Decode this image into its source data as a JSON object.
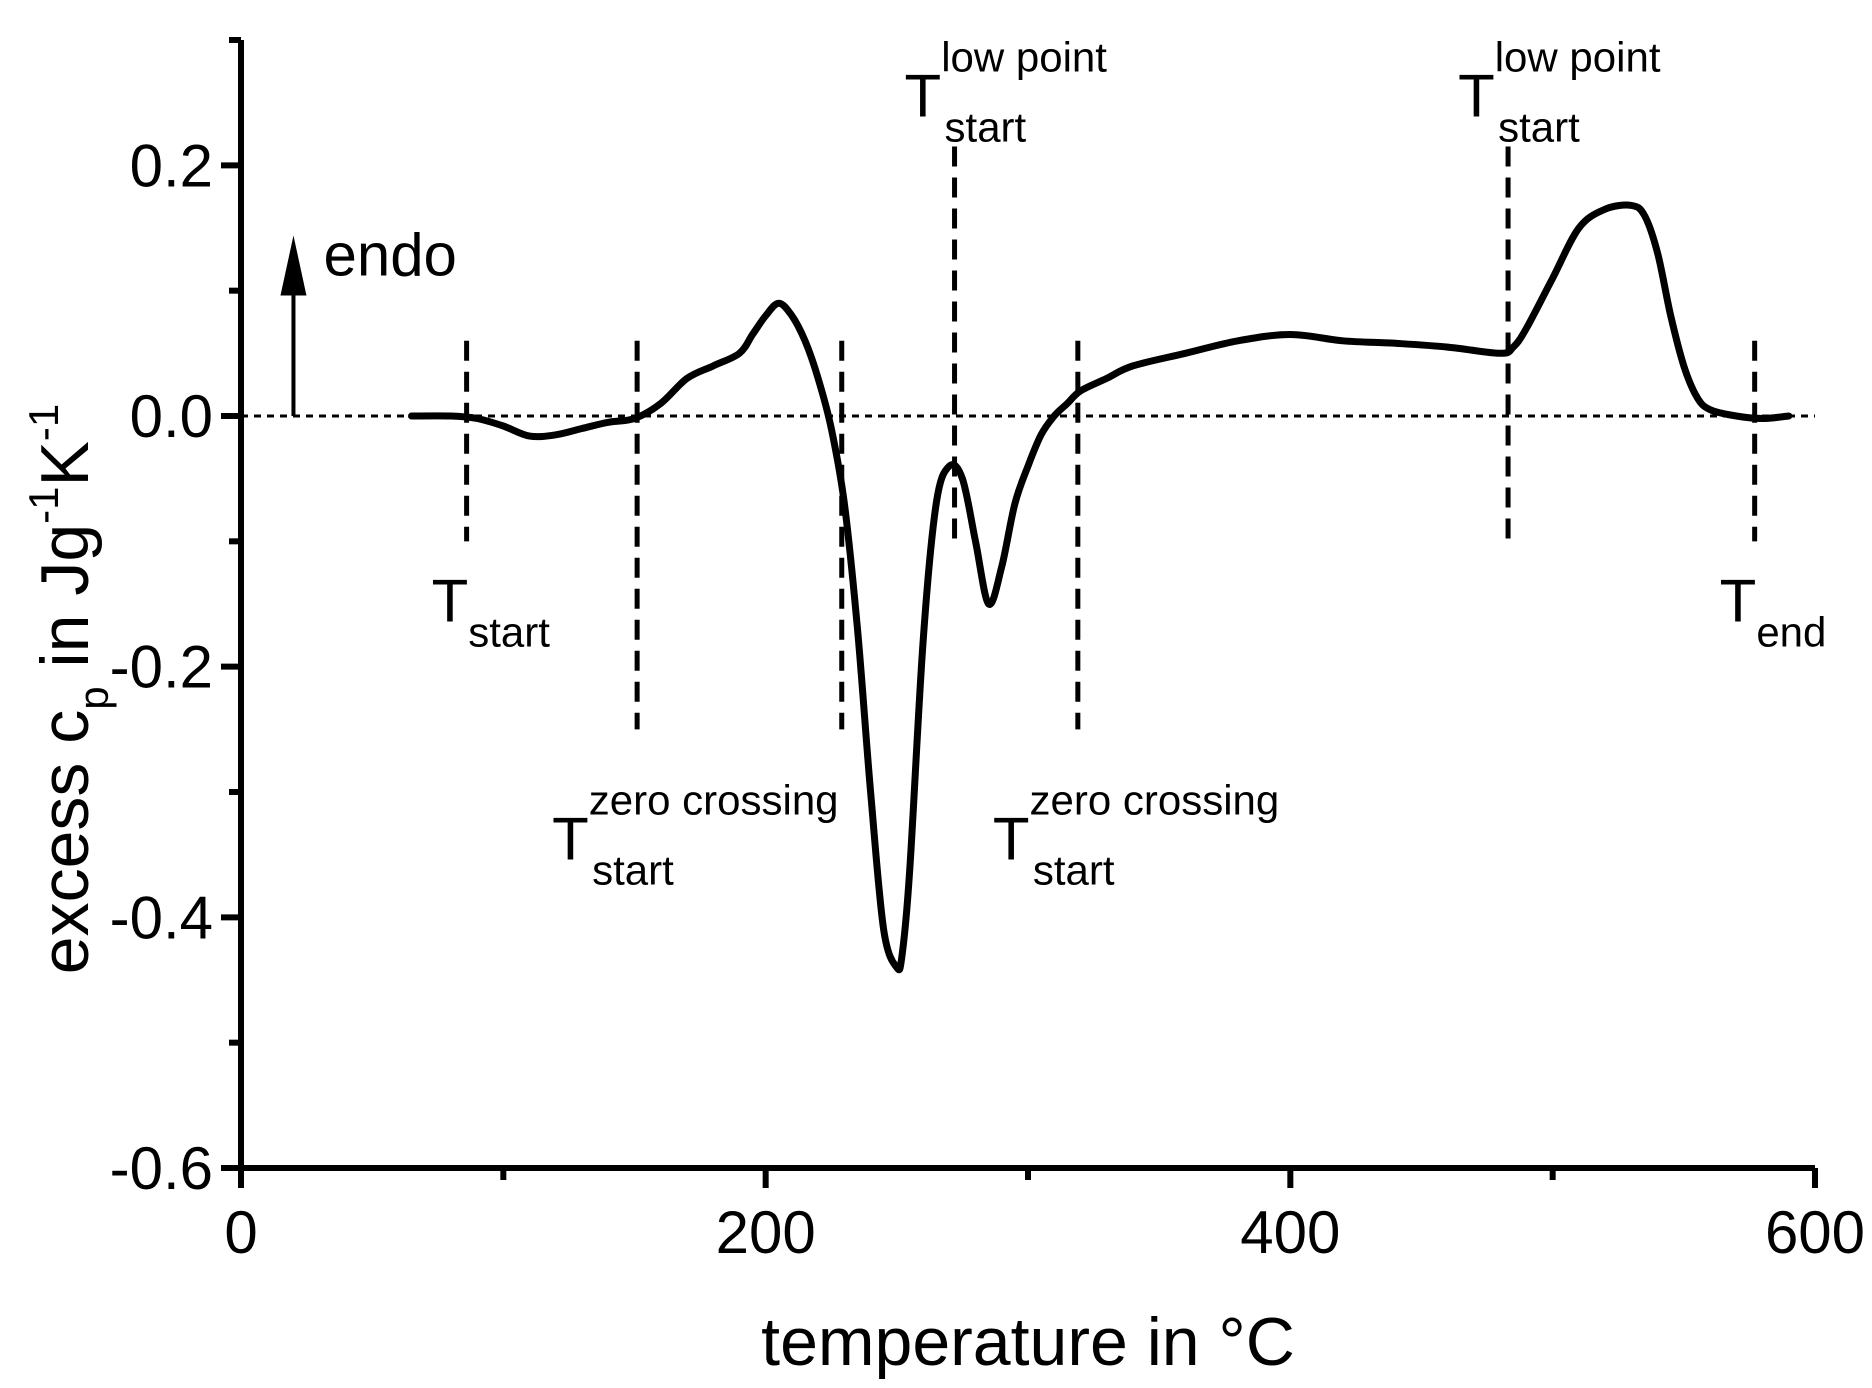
{
  "chart_data": {
    "type": "line",
    "title": "",
    "xlabel": "temperature in °C",
    "ylabel": {
      "base": "excess c",
      "base_sub": "p",
      "mid": " in Jg",
      "mid_sup": "-1",
      "unit": "K",
      "unit_sup": "-1"
    },
    "xlim": [
      0,
      600
    ],
    "ylim": [
      -0.6,
      0.3
    ],
    "x_ticks": [
      0,
      200,
      400,
      600
    ],
    "x_tick_labels": [
      "0",
      "200",
      "400",
      "600"
    ],
    "x_minor_ticks": [
      100,
      300,
      500
    ],
    "y_ticks": [
      -0.6,
      -0.4,
      -0.2,
      0.0,
      0.2
    ],
    "y_tick_labels": [
      "-0.6",
      "-0.4",
      "-0.2",
      "0.0",
      "0.2"
    ],
    "y_minor_ticks": [
      -0.5,
      -0.3,
      -0.1,
      0.1,
      0.3
    ],
    "grid": false,
    "series": [
      {
        "name": "excess cp",
        "color": "#000000",
        "x": [
          65,
          80,
          90,
          100,
          110,
          120,
          130,
          140,
          150,
          160,
          170,
          180,
          190,
          195,
          200,
          205,
          210,
          215,
          220,
          225,
          230,
          235,
          240,
          245,
          250,
          252,
          255,
          260,
          265,
          270,
          275,
          280,
          285,
          290,
          295,
          300,
          305,
          310,
          315,
          320,
          330,
          340,
          360,
          380,
          400,
          420,
          440,
          460,
          480,
          485,
          490,
          500,
          510,
          520,
          530,
          535,
          540,
          545,
          550,
          555,
          560,
          570,
          580,
          590
        ],
        "values": [
          0.0,
          0.0,
          -0.002,
          -0.008,
          -0.016,
          -0.015,
          -0.01,
          -0.005,
          -0.002,
          0.01,
          0.03,
          0.04,
          0.05,
          0.065,
          0.08,
          0.09,
          0.08,
          0.06,
          0.03,
          -0.01,
          -0.07,
          -0.17,
          -0.3,
          -0.41,
          -0.44,
          -0.43,
          -0.36,
          -0.18,
          -0.07,
          -0.04,
          -0.05,
          -0.1,
          -0.15,
          -0.12,
          -0.07,
          -0.04,
          -0.015,
          0.0,
          0.01,
          0.02,
          0.03,
          0.04,
          0.05,
          0.06,
          0.065,
          0.06,
          0.058,
          0.055,
          0.05,
          0.055,
          0.07,
          0.11,
          0.15,
          0.165,
          0.168,
          0.16,
          0.13,
          0.08,
          0.04,
          0.015,
          0.005,
          0.0,
          -0.002,
          0.0
        ]
      }
    ],
    "reference_line": {
      "y": 0.0,
      "style": "dotted"
    },
    "markers": [
      {
        "x": 86,
        "y_range": [
          -0.1,
          0.06
        ],
        "label_main": "T",
        "label_sub": "start",
        "label_sup": ""
      },
      {
        "x": 151,
        "y_range": [
          -0.25,
          0.06
        ],
        "label_main": "T",
        "label_sub": "start",
        "label_sup": "zero crossing"
      },
      {
        "x": 229,
        "y_range": [
          -0.25,
          0.06
        ],
        "label_main": "",
        "label_sub": "",
        "label_sup": ""
      },
      {
        "x": 272,
        "y_range": [
          -0.1,
          0.215
        ],
        "label_main": "T",
        "label_sub": "start",
        "label_sup": "low point"
      },
      {
        "x": 319,
        "y_range": [
          -0.25,
          0.06
        ],
        "label_main": "T",
        "label_sub": "start",
        "label_sup": "zero crossing"
      },
      {
        "x": 483,
        "y_range": [
          -0.1,
          0.215
        ],
        "label_main": "T",
        "label_sub": "start",
        "label_sup": "low point"
      },
      {
        "x": 577,
        "y_range": [
          -0.1,
          0.06
        ],
        "label_main": "T",
        "label_sub": "end",
        "label_sup": ""
      }
    ],
    "annotations": [
      {
        "text": "endo",
        "arrow": "up",
        "x": 20,
        "y_from": 0.0,
        "y_to": 0.14
      }
    ]
  }
}
